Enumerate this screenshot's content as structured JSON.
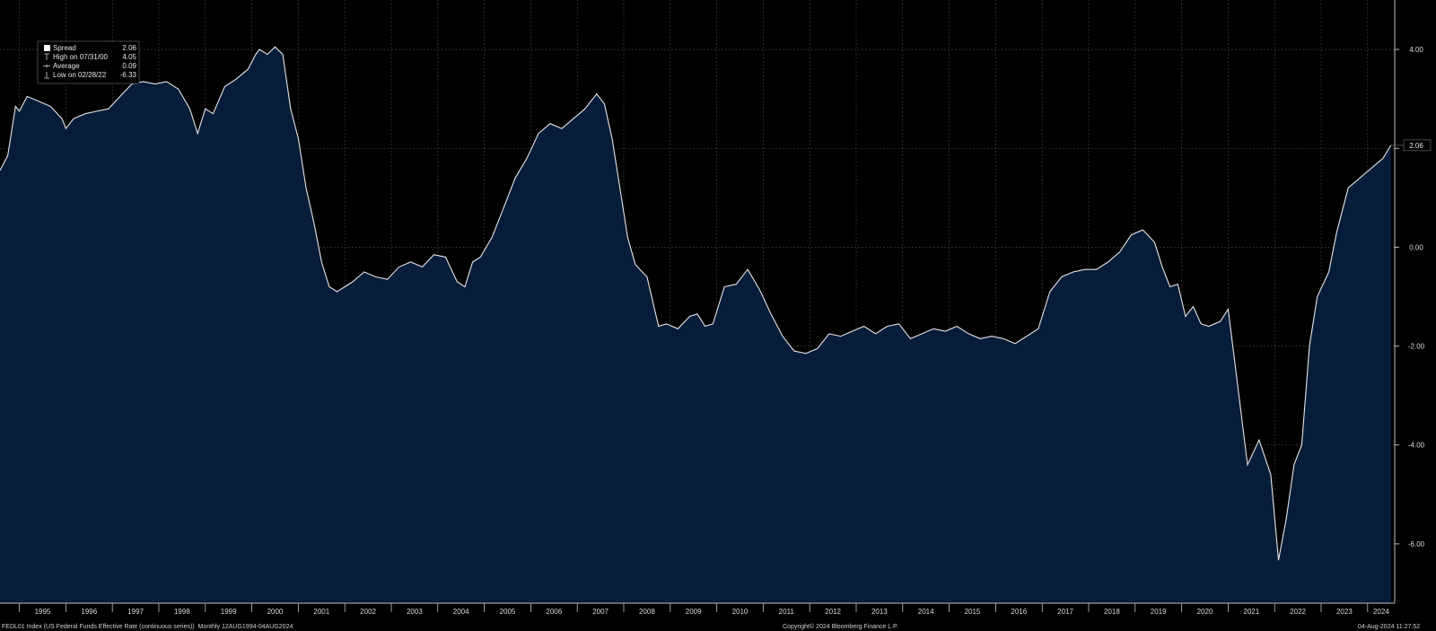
{
  "legend": {
    "rows": [
      {
        "symbol": "square",
        "label": "Spread",
        "value": "2.06"
      },
      {
        "symbol": "high-tick",
        "label": "High on 07/31/00",
        "value": "4.05"
      },
      {
        "symbol": "avg-tick",
        "label": "Average",
        "value": "0.09"
      },
      {
        "symbol": "low-tick",
        "label": "Low on 02/28/22",
        "value": "-6.33"
      }
    ]
  },
  "last_value_label": "2.06",
  "footer": {
    "left": "FEDL01 Index (US Federal Funds Effective Rate (continuous series))  Monthly 12AUG1994-04AUG2024",
    "center": "Copyright© 2024 Bloomberg Finance L.P.",
    "right": "04-Aug-2024 11:27:52"
  },
  "colors": {
    "background": "#000000",
    "area_fill": "#061d3a",
    "line": "#e6e6e6",
    "grid": "#5a5a5a",
    "text": "#d8d8d8"
  },
  "chart_data": {
    "type": "area",
    "series": [
      {
        "name": "Spread"
      }
    ],
    "x_tick_labels": [
      "1995",
      "1996",
      "1997",
      "1998",
      "1999",
      "2000",
      "2001",
      "2002",
      "2003",
      "2004",
      "2005",
      "2006",
      "2007",
      "2008",
      "2009",
      "2010",
      "2011",
      "2012",
      "2013",
      "2014",
      "2015",
      "2016",
      "2017",
      "2018",
      "2019",
      "2020",
      "2021",
      "2022",
      "2023",
      "2024"
    ],
    "y_tick_labels": [
      "4.00",
      "2.00",
      "0.00",
      "-2.00",
      "-4.00",
      "-6.00"
    ],
    "y_ticks": [
      4,
      2,
      0,
      -2,
      -4,
      -6
    ],
    "ylim": [
      -7.2,
      5.0
    ],
    "xlim": [
      "1994-08",
      "2024-08"
    ],
    "grid": true,
    "legend_position": "top-left",
    "points": [
      [
        "1994-08",
        1.55
      ],
      [
        "1994-10",
        1.85
      ],
      [
        "1994-12",
        2.85
      ],
      [
        "1995-01",
        2.75
      ],
      [
        "1995-03",
        3.05
      ],
      [
        "1995-06",
        2.95
      ],
      [
        "1995-09",
        2.85
      ],
      [
        "1995-12",
        2.6
      ],
      [
        "1996-01",
        2.4
      ],
      [
        "1996-03",
        2.6
      ],
      [
        "1996-06",
        2.7
      ],
      [
        "1996-09",
        2.75
      ],
      [
        "1996-12",
        2.8
      ],
      [
        "1997-03",
        3.05
      ],
      [
        "1997-06",
        3.3
      ],
      [
        "1997-09",
        3.35
      ],
      [
        "1997-12",
        3.3
      ],
      [
        "1998-03",
        3.35
      ],
      [
        "1998-06",
        3.2
      ],
      [
        "1998-09",
        2.8
      ],
      [
        "1998-11",
        2.3
      ],
      [
        "1999-01",
        2.8
      ],
      [
        "1999-03",
        2.7
      ],
      [
        "1999-06",
        3.25
      ],
      [
        "1999-09",
        3.4
      ],
      [
        "1999-12",
        3.6
      ],
      [
        "2000-02",
        3.9
      ],
      [
        "2000-03",
        4.0
      ],
      [
        "2000-05",
        3.9
      ],
      [
        "2000-07",
        4.05
      ],
      [
        "2000-09",
        3.9
      ],
      [
        "2000-11",
        2.8
      ],
      [
        "2001-01",
        2.2
      ],
      [
        "2001-03",
        1.2
      ],
      [
        "2001-05",
        0.5
      ],
      [
        "2001-07",
        -0.3
      ],
      [
        "2001-09",
        -0.8
      ],
      [
        "2001-11",
        -0.9
      ],
      [
        "2002-01",
        -0.8
      ],
      [
        "2002-03",
        -0.7
      ],
      [
        "2002-06",
        -0.5
      ],
      [
        "2002-09",
        -0.6
      ],
      [
        "2002-12",
        -0.65
      ],
      [
        "2003-03",
        -0.4
      ],
      [
        "2003-06",
        -0.3
      ],
      [
        "2003-09",
        -0.4
      ],
      [
        "2003-12",
        -0.15
      ],
      [
        "2004-03",
        -0.2
      ],
      [
        "2004-06",
        -0.7
      ],
      [
        "2004-08",
        -0.8
      ],
      [
        "2004-10",
        -0.3
      ],
      [
        "2004-12",
        -0.2
      ],
      [
        "2005-03",
        0.2
      ],
      [
        "2005-06",
        0.8
      ],
      [
        "2005-09",
        1.4
      ],
      [
        "2005-12",
        1.8
      ],
      [
        "2006-03",
        2.3
      ],
      [
        "2006-06",
        2.5
      ],
      [
        "2006-09",
        2.4
      ],
      [
        "2006-12",
        2.6
      ],
      [
        "2007-03",
        2.8
      ],
      [
        "2007-06",
        3.1
      ],
      [
        "2007-08",
        2.9
      ],
      [
        "2007-10",
        2.2
      ],
      [
        "2007-12",
        1.2
      ],
      [
        "2008-02",
        0.2
      ],
      [
        "2008-04",
        -0.35
      ],
      [
        "2008-07",
        -0.6
      ],
      [
        "2008-10",
        -1.6
      ],
      [
        "2008-12",
        -1.55
      ],
      [
        "2009-03",
        -1.65
      ],
      [
        "2009-06",
        -1.4
      ],
      [
        "2009-08",
        -1.35
      ],
      [
        "2009-10",
        -1.6
      ],
      [
        "2009-12",
        -1.55
      ],
      [
        "2010-03",
        -0.8
      ],
      [
        "2010-06",
        -0.75
      ],
      [
        "2010-09",
        -0.45
      ],
      [
        "2010-12",
        -0.85
      ],
      [
        "2011-03",
        -1.35
      ],
      [
        "2011-06",
        -1.8
      ],
      [
        "2011-09",
        -2.1
      ],
      [
        "2011-12",
        -2.15
      ],
      [
        "2012-03",
        -2.05
      ],
      [
        "2012-06",
        -1.75
      ],
      [
        "2012-09",
        -1.8
      ],
      [
        "2012-12",
        -1.7
      ],
      [
        "2013-03",
        -1.6
      ],
      [
        "2013-06",
        -1.75
      ],
      [
        "2013-09",
        -1.6
      ],
      [
        "2013-12",
        -1.55
      ],
      [
        "2014-03",
        -1.85
      ],
      [
        "2014-06",
        -1.75
      ],
      [
        "2014-09",
        -1.65
      ],
      [
        "2014-12",
        -1.7
      ],
      [
        "2015-03",
        -1.6
      ],
      [
        "2015-06",
        -1.75
      ],
      [
        "2015-09",
        -1.85
      ],
      [
        "2015-12",
        -1.8
      ],
      [
        "2016-03",
        -1.85
      ],
      [
        "2016-06",
        -1.95
      ],
      [
        "2016-09",
        -1.8
      ],
      [
        "2016-12",
        -1.65
      ],
      [
        "2017-03",
        -0.9
      ],
      [
        "2017-06",
        -0.6
      ],
      [
        "2017-09",
        -0.5
      ],
      [
        "2017-12",
        -0.45
      ],
      [
        "2018-03",
        -0.45
      ],
      [
        "2018-06",
        -0.3
      ],
      [
        "2018-09",
        -0.1
      ],
      [
        "2018-12",
        0.25
      ],
      [
        "2019-03",
        0.35
      ],
      [
        "2019-06",
        0.1
      ],
      [
        "2019-08",
        -0.4
      ],
      [
        "2019-10",
        -0.8
      ],
      [
        "2019-12",
        -0.75
      ],
      [
        "2020-02",
        -1.4
      ],
      [
        "2020-04",
        -1.2
      ],
      [
        "2020-06",
        -1.55
      ],
      [
        "2020-08",
        -1.6
      ],
      [
        "2020-11",
        -1.5
      ],
      [
        "2021-01",
        -1.25
      ],
      [
        "2021-03",
        -2.5
      ],
      [
        "2021-06",
        -4.4
      ],
      [
        "2021-09",
        -3.9
      ],
      [
        "2021-12",
        -4.6
      ],
      [
        "2022-02",
        -6.33
      ],
      [
        "2022-04",
        -5.5
      ],
      [
        "2022-06",
        -4.4
      ],
      [
        "2022-08",
        -4.0
      ],
      [
        "2022-10",
        -2.0
      ],
      [
        "2022-12",
        -1.0
      ],
      [
        "2023-03",
        -0.5
      ],
      [
        "2023-05",
        0.3
      ],
      [
        "2023-08",
        1.2
      ],
      [
        "2023-11",
        1.4
      ],
      [
        "2024-02",
        1.6
      ],
      [
        "2024-05",
        1.8
      ],
      [
        "2024-07",
        2.06
      ]
    ]
  }
}
